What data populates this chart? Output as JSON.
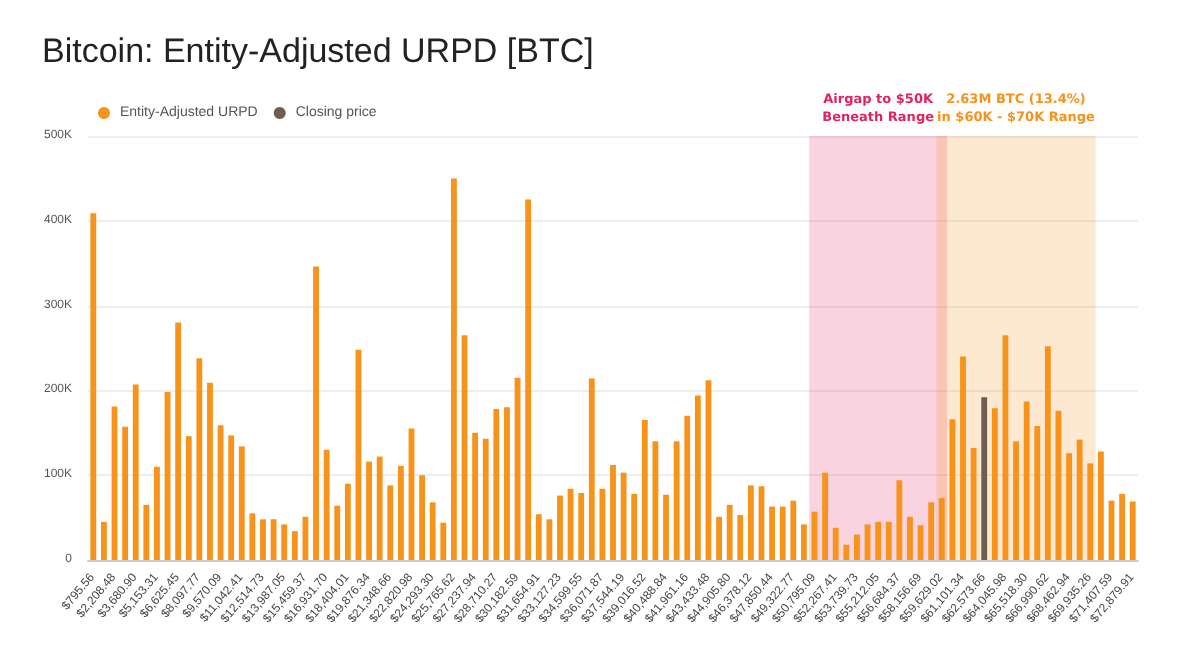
{
  "chart_data": {
    "type": "bar",
    "title": "Bitcoin: Entity-Adjusted URPD [BTC]",
    "categories": [
      "$795.56",
      null,
      "$2,208.48",
      null,
      "$3,680.90",
      null,
      "$5,153.31",
      null,
      "$6,625.45",
      null,
      "$8,097.77",
      null,
      "$9,570.09",
      null,
      "$11,042.41",
      null,
      "$12,514.73",
      null,
      "$13,987.05",
      null,
      "$15,459.37",
      null,
      "$16,931.70",
      null,
      "$18,404.01",
      null,
      "$19,876.34",
      null,
      "$21,348.66",
      null,
      "$22,820.98",
      null,
      "$24,293.30",
      null,
      "$25,765.62",
      null,
      "$27,237.94",
      null,
      "$28,710.27",
      null,
      "$30,182.59",
      null,
      "$31,654.91",
      null,
      "$33,127.23",
      null,
      "$34,599.55",
      null,
      "$36,071.87",
      null,
      "$37,544.19",
      null,
      "$39,016.52",
      null,
      "$40,488.84",
      null,
      "$41,961.16",
      null,
      "$43,433.48",
      null,
      "$44,905.80",
      null,
      "$46,378.12",
      null,
      "$47,850.44",
      null,
      "$49,322.77",
      null,
      "$50,795.09",
      null,
      "$52,267.41",
      null,
      "$53,739.73",
      null,
      "$55,212.05",
      null,
      "$56,684.37",
      null,
      "$58,156.69",
      null,
      "$59,629.02",
      null,
      "$61,101.34",
      null,
      "$62,573.66",
      null,
      "$64,045.98",
      null,
      "$65,518.30",
      null,
      "$66,990.62",
      null,
      "$68,462.94",
      null,
      "$69,935.26",
      null,
      "$71,407.59",
      null,
      "$72,879.91"
    ],
    "series": [
      {
        "name": "Entity-Adjusted URPD",
        "color": "#f7931a",
        "values": [
          409000,
          45000,
          181000,
          157000,
          207000,
          65000,
          110000,
          198000,
          280000,
          146000,
          238000,
          209000,
          159000,
          147000,
          134000,
          55000,
          48000,
          48000,
          42000,
          34000,
          51000,
          346000,
          130000,
          64000,
          90000,
          248000,
          116000,
          122000,
          88000,
          111000,
          155000,
          100000,
          68000,
          44000,
          450000,
          265000,
          150000,
          143000,
          178000,
          180000,
          215000,
          425000,
          54000,
          48000,
          76000,
          84000,
          79000,
          214000,
          84000,
          112000,
          103000,
          78000,
          165000,
          140000,
          77000,
          140000,
          170000,
          194000,
          212000,
          51000,
          65000,
          53000,
          88000,
          87000,
          63000,
          63000,
          70000,
          42000,
          57000,
          103000,
          38000,
          18000,
          30000,
          42000,
          45000,
          45000,
          94000,
          51000,
          41000,
          68000,
          73000,
          166000,
          240000,
          132000,
          null,
          179000,
          265000,
          140000,
          187000,
          158000,
          252000,
          176000,
          126000,
          142000,
          114000,
          128000,
          70000,
          78000,
          69000
        ]
      },
      {
        "name": "Closing price",
        "color": "#6e5e52",
        "values": [
          null,
          null,
          null,
          null,
          null,
          null,
          null,
          null,
          null,
          null,
          null,
          null,
          null,
          null,
          null,
          null,
          null,
          null,
          null,
          null,
          null,
          null,
          null,
          null,
          null,
          null,
          null,
          null,
          null,
          null,
          null,
          null,
          null,
          null,
          null,
          null,
          null,
          null,
          null,
          null,
          null,
          null,
          null,
          null,
          null,
          null,
          null,
          null,
          null,
          null,
          null,
          null,
          null,
          null,
          null,
          null,
          null,
          null,
          null,
          null,
          null,
          null,
          null,
          null,
          null,
          null,
          null,
          null,
          null,
          null,
          null,
          null,
          null,
          null,
          null,
          null,
          null,
          null,
          null,
          null,
          null,
          null,
          null,
          null,
          192000,
          null,
          null,
          null,
          null,
          null,
          null,
          null,
          null,
          null,
          null,
          null,
          null,
          null,
          null
        ]
      }
    ],
    "ylim": [
      0,
      500000
    ],
    "yticks": [
      {
        "value": 0,
        "label": "0"
      },
      {
        "value": 100000,
        "label": "100K"
      },
      {
        "value": 200000,
        "label": "200K"
      },
      {
        "value": 300000,
        "label": "300K"
      },
      {
        "value": 400000,
        "label": "400K"
      },
      {
        "value": 500000,
        "label": "500K"
      }
    ],
    "bands": [
      {
        "axis": "x",
        "from": "$50,795.09",
        "to": "$59,629.02",
        "label": "Airgap to $50K\nBeneath Range",
        "color": "#e0245e"
      },
      {
        "axis": "x",
        "from": "$59,629.02",
        "to": "$69,935.26",
        "label": "2.63M BTC (13.4%)\nin $60K - $70K Range",
        "color": "#f7931a"
      }
    ],
    "grid": "y",
    "legend": "top left"
  }
}
